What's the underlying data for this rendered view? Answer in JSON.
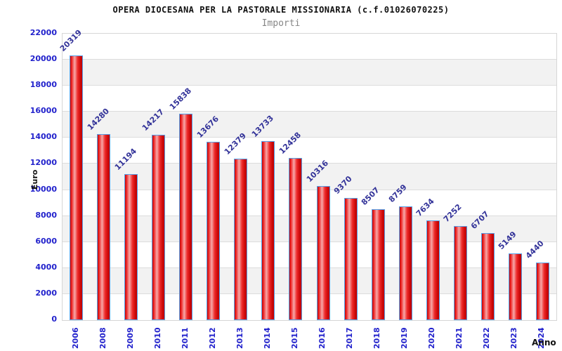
{
  "header": {
    "title": "OPERA DIOCESANA PER LA PASTORALE MISSIONARIA (c.f.01026070225)",
    "subtitle": "Importi"
  },
  "chart_data": {
    "type": "bar",
    "title": "OPERA DIOCESANA PER LA PASTORALE MISSIONARIA (c.f.01026070225)",
    "subtitle": "Importi",
    "xlabel": "Anno",
    "ylabel": "Euro",
    "categories": [
      "2006",
      "2008",
      "2009",
      "2010",
      "2011",
      "2012",
      "2013",
      "2014",
      "2015",
      "2016",
      "2017",
      "2018",
      "2019",
      "2020",
      "2021",
      "2022",
      "2023",
      "2024"
    ],
    "values": [
      20319,
      14280,
      11194,
      14217,
      15838,
      13676,
      12379,
      13733,
      12458,
      10316,
      9370,
      8507,
      8759,
      7634,
      7252,
      6707,
      5149,
      4440
    ],
    "ylim": [
      0,
      22000
    ],
    "ytick_step": 2000,
    "grid": "horizontal-bands-alternating",
    "legend": "none",
    "colors": {
      "bar_edge": "#c50404",
      "bar_bright": "#ee2a2a",
      "bar_mid": "#f7a8a8",
      "bar_border": "#55a0e8",
      "axis_tick_label": "#2222cc",
      "value_label": "#333399",
      "band_gray": "#f2f2f2",
      "band_white": "#ffffff",
      "grid_line": "#dcdcdc",
      "plot_border": "#d6d6d6",
      "title_text": "#111111",
      "subtitle_text": "#868686"
    }
  }
}
